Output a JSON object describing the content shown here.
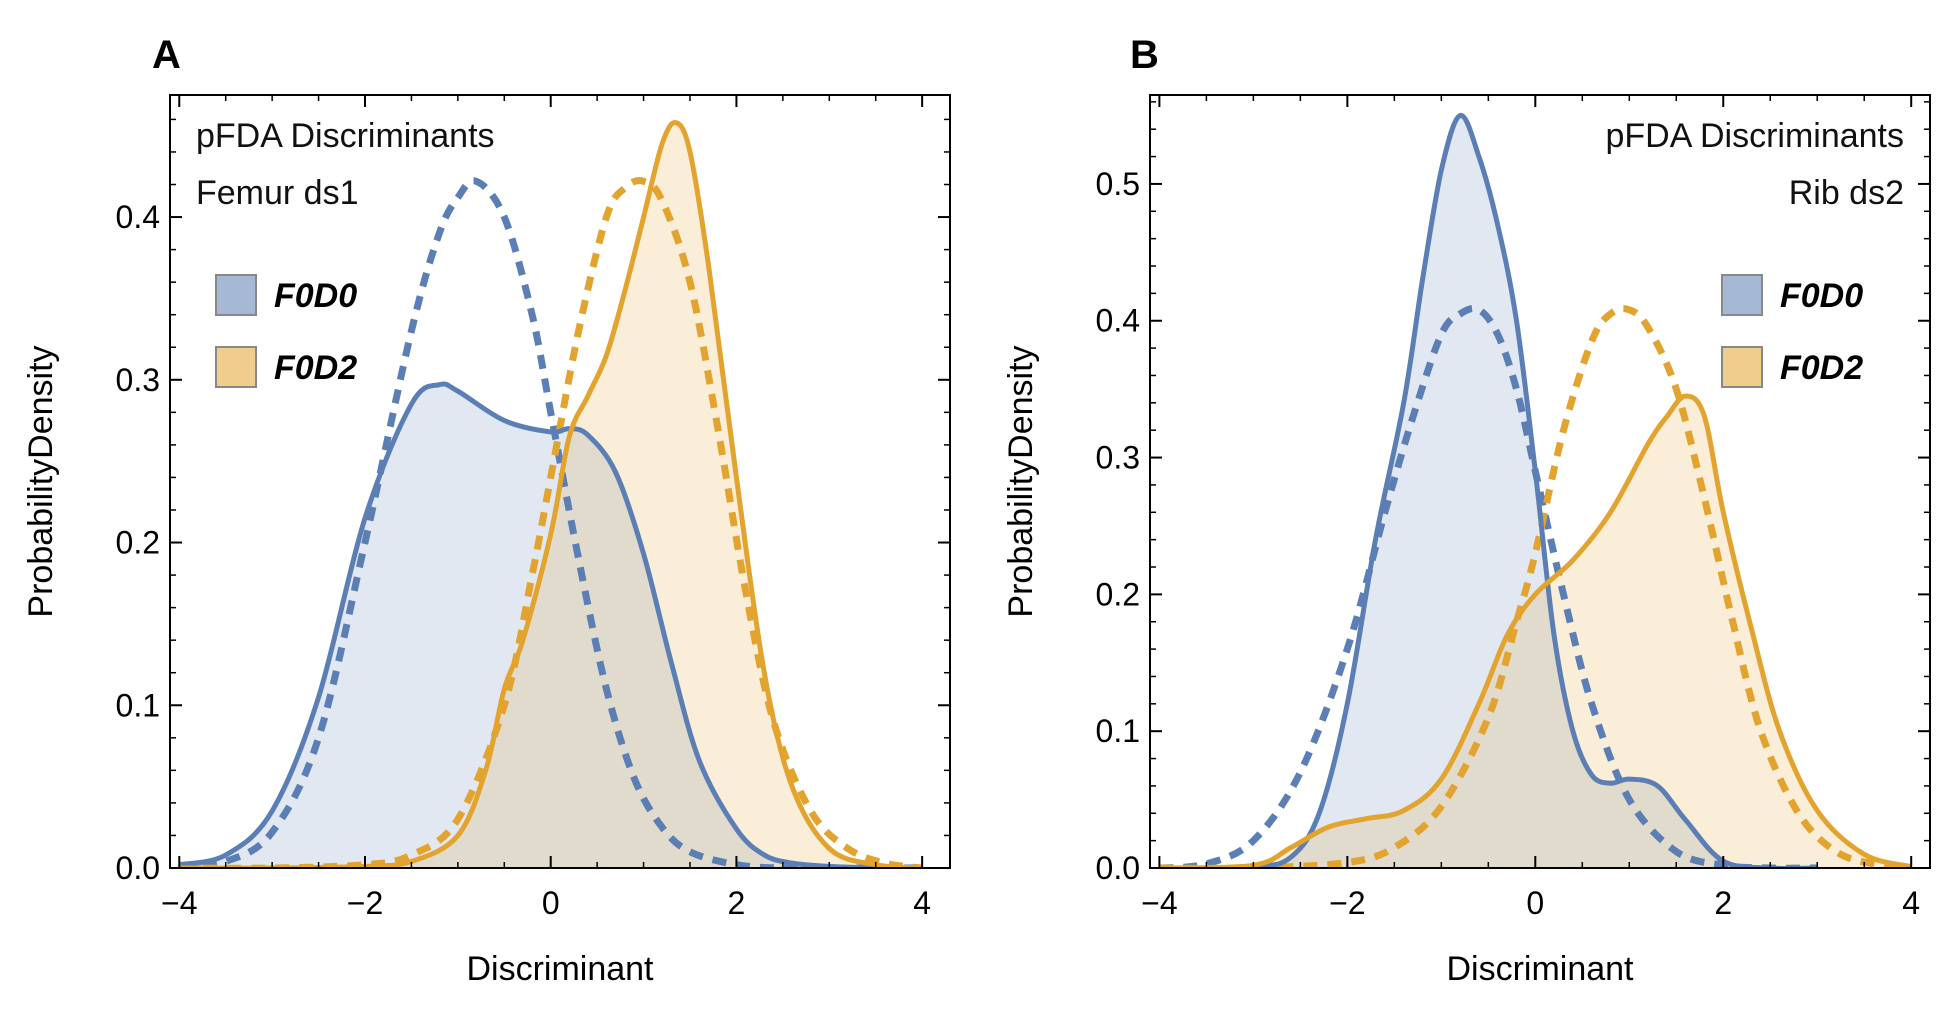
{
  "chart_data": [
    {
      "panel_label": "A",
      "type": "area",
      "xlabel": "Discriminant",
      "ylabel": "ProbabilityDensity",
      "annotation_lines": [
        "pFDA Discriminants",
        "Femur ds1"
      ],
      "annotation_align": "left",
      "legend_position": "top-left",
      "xlim": [
        -4.1,
        4.3
      ],
      "ylim": [
        0,
        0.475
      ],
      "xticks": [
        -4,
        -2,
        0,
        2,
        4
      ],
      "xtick_labels": [
        "−4",
        "−2",
        "0",
        "2",
        "4"
      ],
      "yticks": [
        0,
        0.1,
        0.2,
        0.3,
        0.4
      ],
      "ytick_labels": [
        "0.0",
        "0.1",
        "0.2",
        "0.3",
        "0.4"
      ],
      "legend": [
        {
          "label": "F0D0",
          "color": "#5b7fb4"
        },
        {
          "label": "F0D2",
          "color": "#e3a32f"
        }
      ],
      "series": [
        {
          "name": "F0D0",
          "style": "solid",
          "fill": true,
          "color": "#5b7fb4",
          "x": [
            -4.0,
            -3.5,
            -3.0,
            -2.5,
            -2.0,
            -1.5,
            -1.2,
            -1.0,
            -0.5,
            0.0,
            0.2,
            0.4,
            0.7,
            1.0,
            1.3,
            1.6,
            2.0,
            2.3,
            2.6,
            3.0,
            3.5,
            4.0
          ],
          "y": [
            0.002,
            0.008,
            0.035,
            0.105,
            0.215,
            0.285,
            0.297,
            0.293,
            0.275,
            0.268,
            0.27,
            0.266,
            0.243,
            0.193,
            0.126,
            0.066,
            0.024,
            0.008,
            0.003,
            0.001,
            0.0,
            0.0
          ]
        },
        {
          "name": "F0D2",
          "style": "solid",
          "fill": true,
          "color": "#e3a32f",
          "x": [
            -4.0,
            -3.0,
            -2.0,
            -1.5,
            -1.0,
            -0.7,
            -0.5,
            -0.3,
            0.0,
            0.2,
            0.4,
            0.6,
            0.8,
            1.0,
            1.2,
            1.35,
            1.5,
            1.7,
            2.0,
            2.3,
            2.6,
            3.0,
            3.5,
            4.0
          ],
          "y": [
            0.0,
            0.0,
            0.001,
            0.004,
            0.02,
            0.06,
            0.11,
            0.14,
            0.205,
            0.265,
            0.29,
            0.315,
            0.355,
            0.4,
            0.445,
            0.458,
            0.44,
            0.37,
            0.24,
            0.12,
            0.05,
            0.012,
            0.002,
            0.0
          ]
        },
        {
          "name": "F0D0",
          "style": "dashed",
          "fill": false,
          "color": "#5b7fb4",
          "x": [
            -4.0,
            -3.5,
            -3.0,
            -2.5,
            -2.0,
            -1.5,
            -1.2,
            -1.0,
            -0.8,
            -0.5,
            -0.2,
            0.0,
            0.3,
            0.6,
            0.9,
            1.2,
            1.5,
            2.0,
            2.5,
            3.0,
            3.5,
            4.0
          ],
          "y": [
            0.0,
            0.004,
            0.022,
            0.08,
            0.2,
            0.33,
            0.39,
            0.412,
            0.422,
            0.4,
            0.34,
            0.28,
            0.19,
            0.11,
            0.055,
            0.025,
            0.01,
            0.002,
            0.0,
            0.0,
            0.0,
            0.0
          ]
        },
        {
          "name": "F0D2",
          "style": "dashed",
          "fill": false,
          "color": "#e3a32f",
          "x": [
            -4.0,
            -3.0,
            -2.0,
            -1.5,
            -1.0,
            -0.5,
            -0.2,
            0.0,
            0.3,
            0.6,
            0.8,
            1.0,
            1.2,
            1.5,
            1.8,
            2.1,
            2.4,
            2.8,
            3.2,
            3.6,
            4.0
          ],
          "y": [
            0.0,
            0.0,
            0.002,
            0.008,
            0.03,
            0.1,
            0.18,
            0.24,
            0.33,
            0.4,
            0.418,
            0.422,
            0.41,
            0.36,
            0.27,
            0.17,
            0.09,
            0.035,
            0.012,
            0.003,
            0.0
          ]
        }
      ]
    },
    {
      "panel_label": "B",
      "type": "area",
      "xlabel": "Discriminant",
      "ylabel": "ProbabilityDensity",
      "annotation_lines": [
        "pFDA Discriminants",
        "Rib ds2"
      ],
      "annotation_align": "right",
      "legend_position": "top-right",
      "xlim": [
        -4.1,
        4.2
      ],
      "ylim": [
        0,
        0.565
      ],
      "xticks": [
        -4,
        -2,
        0,
        2,
        4
      ],
      "xtick_labels": [
        "−4",
        "−2",
        "0",
        "2",
        "4"
      ],
      "yticks": [
        0,
        0.1,
        0.2,
        0.3,
        0.4,
        0.5
      ],
      "ytick_labels": [
        "0.0",
        "0.1",
        "0.2",
        "0.3",
        "0.4",
        "0.5"
      ],
      "legend": [
        {
          "label": "F0D0",
          "color": "#5b7fb4"
        },
        {
          "label": "F0D2",
          "color": "#e3a32f"
        }
      ],
      "series": [
        {
          "name": "F0D0",
          "style": "solid",
          "fill": true,
          "color": "#5b7fb4",
          "x": [
            -4.0,
            -3.0,
            -2.6,
            -2.3,
            -2.0,
            -1.7,
            -1.4,
            -1.2,
            -1.0,
            -0.8,
            -0.6,
            -0.4,
            -0.2,
            0.0,
            0.2,
            0.4,
            0.6,
            0.8,
            1.0,
            1.3,
            1.6,
            2.0,
            2.5,
            3.0
          ],
          "y": [
            0.0,
            0.001,
            0.008,
            0.04,
            0.12,
            0.24,
            0.34,
            0.43,
            0.51,
            0.55,
            0.52,
            0.47,
            0.4,
            0.29,
            0.17,
            0.1,
            0.068,
            0.062,
            0.065,
            0.06,
            0.035,
            0.005,
            0.0,
            0.0
          ]
        },
        {
          "name": "F0D2",
          "style": "solid",
          "fill": true,
          "color": "#e3a32f",
          "x": [
            -4.0,
            -3.0,
            -2.6,
            -2.2,
            -1.8,
            -1.4,
            -1.0,
            -0.6,
            -0.3,
            0.0,
            0.4,
            0.8,
            1.2,
            1.4,
            1.6,
            1.8,
            2.0,
            2.3,
            2.6,
            3.0,
            3.5,
            4.0
          ],
          "y": [
            0.0,
            0.002,
            0.015,
            0.03,
            0.036,
            0.042,
            0.065,
            0.12,
            0.17,
            0.2,
            0.225,
            0.26,
            0.31,
            0.33,
            0.345,
            0.33,
            0.26,
            0.175,
            0.1,
            0.042,
            0.01,
            0.001
          ]
        },
        {
          "name": "F0D0",
          "style": "dashed",
          "fill": false,
          "color": "#5b7fb4",
          "x": [
            -4.0,
            -3.5,
            -3.0,
            -2.5,
            -2.0,
            -1.6,
            -1.3,
            -1.0,
            -0.8,
            -0.6,
            -0.4,
            -0.2,
            0.0,
            0.3,
            0.6,
            1.0,
            1.5,
            2.0,
            2.5,
            3.0
          ],
          "y": [
            0.0,
            0.003,
            0.02,
            0.07,
            0.16,
            0.26,
            0.33,
            0.39,
            0.405,
            0.408,
            0.39,
            0.35,
            0.29,
            0.2,
            0.12,
            0.05,
            0.012,
            0.002,
            0.0,
            0.0
          ]
        },
        {
          "name": "F0D2",
          "style": "dashed",
          "fill": false,
          "color": "#e3a32f",
          "x": [
            -4.0,
            -3.0,
            -2.0,
            -1.5,
            -1.0,
            -0.5,
            -0.2,
            0.0,
            0.3,
            0.6,
            0.8,
            1.0,
            1.2,
            1.5,
            1.8,
            2.1,
            2.4,
            2.8,
            3.2,
            3.6,
            4.0
          ],
          "y": [
            0.0,
            0.0,
            0.004,
            0.015,
            0.045,
            0.11,
            0.18,
            0.23,
            0.32,
            0.385,
            0.405,
            0.408,
            0.395,
            0.35,
            0.27,
            0.18,
            0.1,
            0.04,
            0.012,
            0.003,
            0.0
          ]
        }
      ]
    }
  ]
}
